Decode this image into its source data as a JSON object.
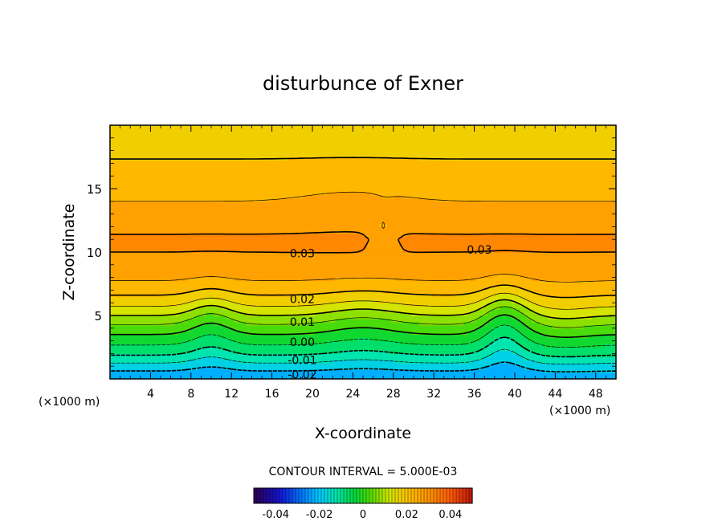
{
  "chart_data": {
    "type": "heatmap",
    "title": "disturbunce of Exner",
    "xlabel": "X-coordinate",
    "ylabel": "Z-coordinate",
    "x_unit": "(×1000 m)",
    "y_unit": "(×1000 m)",
    "xlim": [
      0,
      50
    ],
    "ylim": [
      0,
      20
    ],
    "x_ticks": [
      4,
      8,
      12,
      16,
      20,
      24,
      28,
      32,
      36,
      40,
      44,
      48
    ],
    "y_ticks": [
      5,
      10,
      15
    ],
    "contour_interval_text": "CONTOUR INTERVAL = 5.000E-03",
    "contour_labels": [
      "0.03",
      "0.03",
      "0.02",
      "0.01",
      "0.00",
      "-0.01",
      "-0.02"
    ],
    "colorbar": {
      "range": [
        -0.05,
        0.05
      ],
      "ticks": [
        "-0.04",
        "-0.02",
        "0",
        "0.02",
        "0.04"
      ]
    },
    "profile": {
      "z": [
        0,
        1,
        2,
        3,
        4,
        5,
        6,
        7,
        8,
        9,
        10,
        11,
        12,
        13,
        14,
        15,
        16,
        17,
        18,
        19,
        20
      ],
      "value": [
        -0.025,
        -0.017,
        -0.009,
        -0.003,
        0.003,
        0.01,
        0.017,
        0.022,
        0.026,
        0.029,
        0.03,
        0.031,
        0.0285,
        0.027,
        0.025,
        0.0235,
        0.022,
        0.0205,
        0.019,
        0.0175,
        0.016
      ]
    },
    "grid": false
  }
}
